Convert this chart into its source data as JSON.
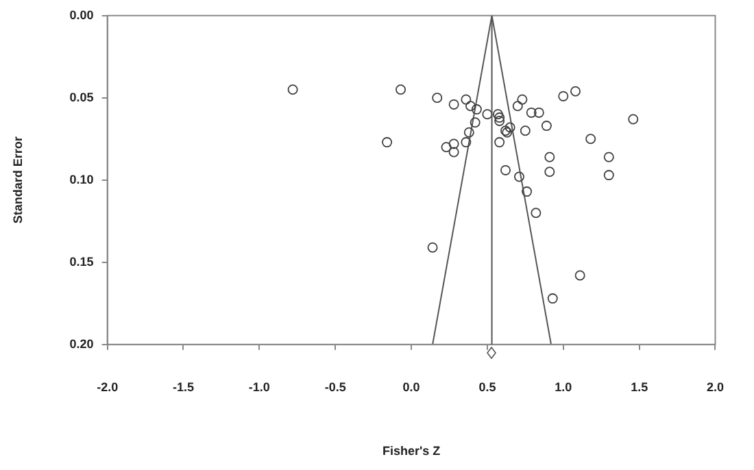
{
  "chart_data": {
    "type": "scatter",
    "xlabel": "Fisher's Z",
    "ylabel": "Standard Error",
    "xlim": [
      -2.0,
      2.0
    ],
    "xticks": [
      {
        "value": -2.0,
        "label": "-2.0"
      },
      {
        "value": -1.5,
        "label": "-1.5"
      },
      {
        "value": -1.0,
        "label": "-1.0"
      },
      {
        "value": -0.5,
        "label": "-0.5"
      },
      {
        "value": 0.0,
        "label": "0.0"
      },
      {
        "value": 0.5,
        "label": "0.5"
      },
      {
        "value": 1.0,
        "label": "1.0"
      },
      {
        "value": 1.5,
        "label": "1.5"
      },
      {
        "value": 2.0,
        "label": "2.0"
      }
    ],
    "ylim": [
      0.2,
      0.0
    ],
    "yticks": [
      {
        "value": 0.0,
        "label": "0.00"
      },
      {
        "value": 0.05,
        "label": "0.05"
      },
      {
        "value": 0.1,
        "label": "0.10"
      },
      {
        "value": 0.15,
        "label": "0.15"
      },
      {
        "value": 0.2,
        "label": "0.20"
      }
    ],
    "grid": false,
    "legend": false,
    "marker": "circle",
    "ref_lines": [
      {
        "axis": "x",
        "value": 0.53,
        "color": "#555555"
      }
    ],
    "series": [
      {
        "type": "scatter",
        "color": "#404040",
        "x": [
          -0.78,
          -0.07,
          0.17,
          0.28,
          0.36,
          0.39,
          0.43,
          0.5,
          0.57,
          0.58,
          0.58,
          0.42,
          0.38,
          0.36,
          -0.16,
          0.23,
          0.28,
          0.28,
          0.58,
          0.62,
          0.63,
          0.65,
          0.62,
          0.7,
          0.73,
          0.71,
          0.75,
          0.79,
          0.84,
          0.89,
          1.0,
          1.08,
          1.46,
          1.18,
          0.91,
          1.3,
          0.91,
          1.3,
          0.76,
          0.82,
          0.14,
          1.11,
          0.93
        ],
        "values": [
          0.045,
          0.045,
          0.05,
          0.054,
          0.051,
          0.055,
          0.057,
          0.06,
          0.06,
          0.062,
          0.064,
          0.065,
          0.071,
          0.077,
          0.077,
          0.08,
          0.078,
          0.083,
          0.077,
          0.07,
          0.071,
          0.068,
          0.094,
          0.055,
          0.051,
          0.098,
          0.07,
          0.059,
          0.059,
          0.067,
          0.049,
          0.046,
          0.063,
          0.075,
          0.086,
          0.086,
          0.095,
          0.097,
          0.107,
          0.12,
          0.141,
          0.158,
          0.172
        ]
      },
      {
        "type": "line",
        "color": "#555555",
        "marker": "none",
        "x": [
          0.14,
          0.53,
          0.92
        ],
        "values": [
          0.2,
          0.0,
          0.2
        ]
      }
    ]
  }
}
